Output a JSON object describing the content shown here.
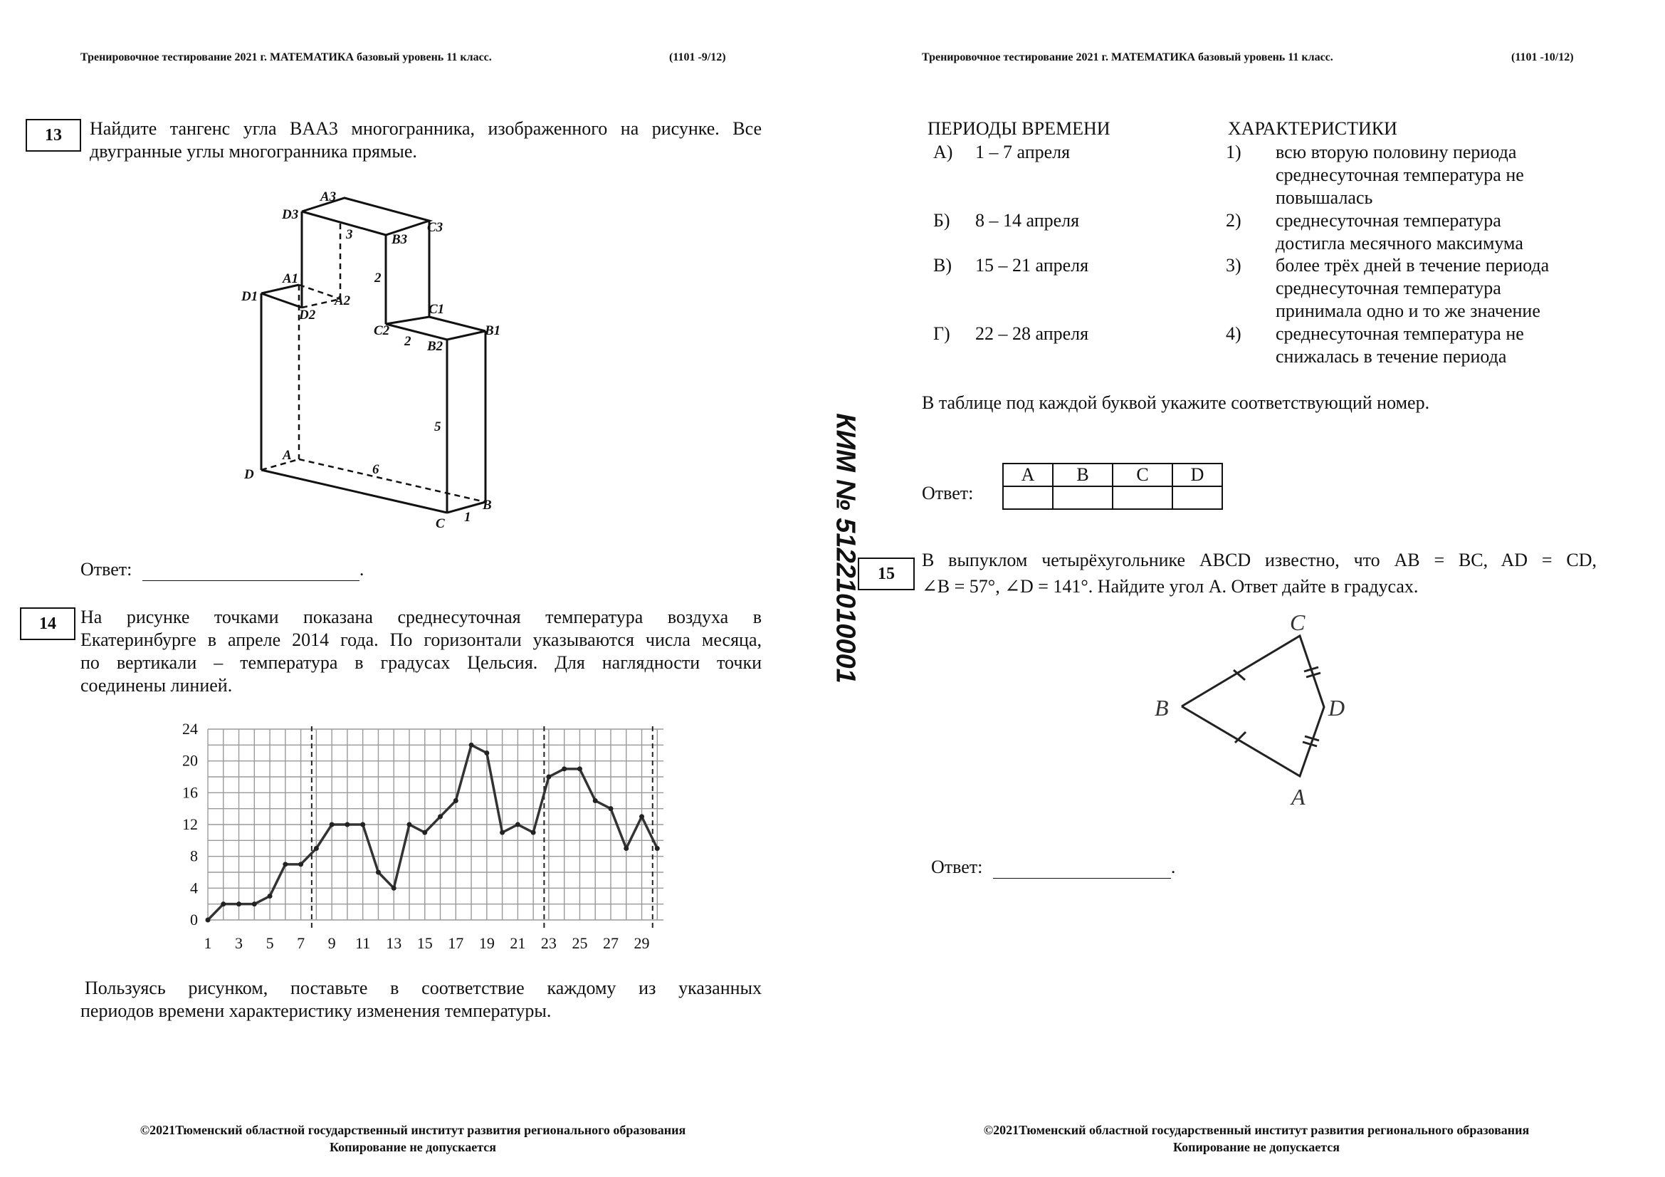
{
  "left_page": {
    "header_title": "Тренировочное тестирование 2021 г. МАТЕМАТИКА базовый уровень  11 класс.",
    "page_code": "(1101 -9/12)",
    "q13": {
      "number": "13",
      "text_line1": "Найдите тангенс угла BAA3 многогранника, изображенного на рисунке. Все",
      "text_line2": "двугранные углы многогранника прямые.",
      "figure_labels": [
        "A3",
        "D3",
        "B3",
        "C3",
        "A1",
        "D1",
        "D2",
        "A2",
        "C1",
        "C2",
        "B2",
        "B1",
        "A",
        "D",
        "C",
        "B",
        "3",
        "2",
        "2",
        "5",
        "6",
        "1"
      ],
      "answer_label": "Ответ:"
    },
    "q14": {
      "number": "14",
      "text_line1": "На рисунке точками показана среднесуточная температура воздуха в",
      "text_line2": "Екатеринбурге в апреле 2014 года. По горизонтали указываются числа месяца,",
      "text_line3": "по вертикали – температура в градусах Цельсия. Для наглядности точки",
      "text_line4": "соединены линией.",
      "after_line1": "Пользуясь рисунком, поставьте в соответствие каждому из указанных",
      "after_line2": "периодов времени характеристику изменения температуры."
    },
    "footer_line1": "©2021Тюменский областной государственный институт развития регионального образования",
    "footer_line2": "Копирование не допускается"
  },
  "chart_data": {
    "type": "line",
    "x": [
      1,
      2,
      3,
      4,
      5,
      6,
      7,
      8,
      9,
      10,
      11,
      12,
      13,
      14,
      15,
      16,
      17,
      18,
      19,
      20,
      21,
      22,
      23,
      24,
      25,
      26,
      27,
      28,
      29,
      30
    ],
    "values": [
      0,
      2,
      2,
      2,
      3,
      7,
      7,
      9,
      12,
      12,
      12,
      6,
      4,
      12,
      11,
      13,
      15,
      22,
      21,
      11,
      12,
      11,
      18,
      19,
      19,
      15,
      14,
      9,
      13,
      9
    ],
    "xticks": [
      "1",
      "3",
      "5",
      "7",
      "9",
      "11",
      "13",
      "15",
      "17",
      "19",
      "21",
      "23",
      "25",
      "27",
      "29"
    ],
    "yticks": [
      "0",
      "4",
      "8",
      "12",
      "16",
      "20",
      "24"
    ],
    "xlim": [
      1,
      30
    ],
    "ylim": [
      0,
      24
    ],
    "grid": true,
    "dashed_verticals": [
      7.7,
      22.7,
      29.7
    ]
  },
  "right_page": {
    "header_title": "Тренировочное тестирование 2021 г. МАТЕМАТИКА базовый уровень  11 класс.",
    "page_code": "(1101 -10/12)",
    "periods_heading": "ПЕРИОДЫ ВРЕМЕНИ",
    "chars_heading": "ХАРАКТЕРИСТИКИ",
    "periods": [
      {
        "letter": "А)",
        "text": "1 – 7 апреля"
      },
      {
        "letter": "Б)",
        "text": "8 – 14 апреля"
      },
      {
        "letter": "В)",
        "text": "15 – 21 апреля"
      },
      {
        "letter": "Г)",
        "text": "22 – 28 апреля"
      }
    ],
    "characteristics": [
      {
        "num": "1)",
        "lines": [
          "всю вторую половину периода",
          "среднесуточная температура не",
          "повышалась"
        ]
      },
      {
        "num": "2)",
        "lines": [
          "среднесуточная температура",
          "достигла месячного максимума"
        ]
      },
      {
        "num": "3)",
        "lines": [
          "более трёх дней в течение периода",
          "среднесуточная температура",
          "принимала одно и то же значение"
        ]
      },
      {
        "num": "4)",
        "lines": [
          "среднесуточная температура не",
          "снижалась в течение периода"
        ]
      }
    ],
    "instruction": "В таблице под каждой буквой укажите соответствующий номер.",
    "answer_label": "Ответ:",
    "table_headers": [
      "A",
      "B",
      "C",
      "D"
    ],
    "q15": {
      "number": "15",
      "text_line1": "В выпуклом четырёхугольнике ABCD известно, что AB = BC, AD = CD,",
      "text_line2": "∠B = 57°, ∠D = 141°. Найдите угол A. Ответ дайте в градусах.",
      "figure_labels": [
        "C",
        "B",
        "D",
        "A"
      ],
      "answer_label": "Ответ:"
    },
    "footer_line1": "©2021Тюменский областной государственный институт развития регионального образования",
    "footer_line2": "Копирование не допускается"
  },
  "kim_number": "КИМ № 51221010001"
}
